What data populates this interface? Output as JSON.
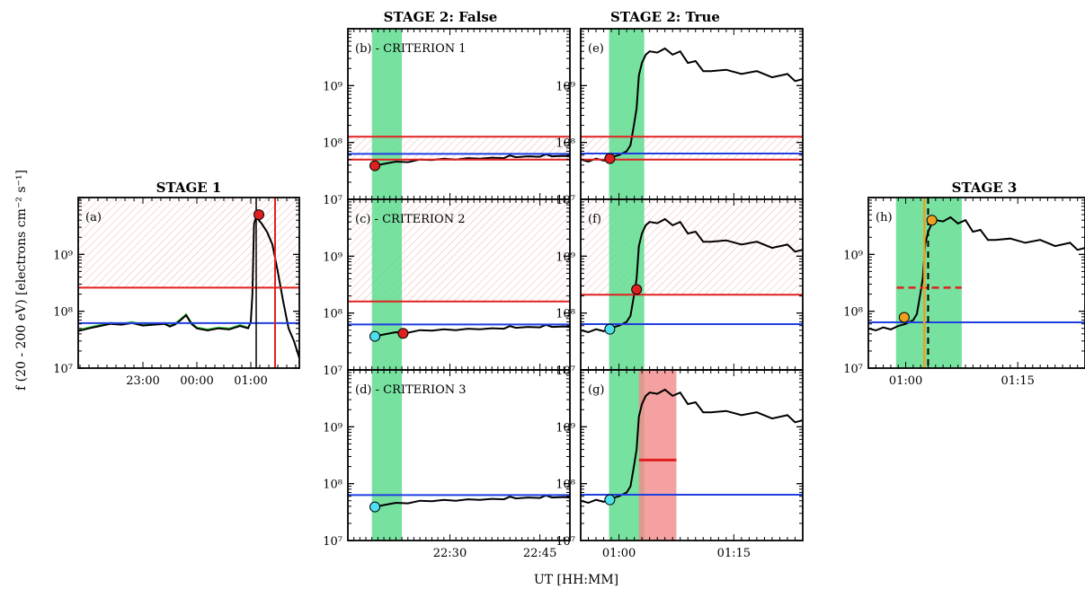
{
  "figure": {
    "ylabel": "f (20 - 200 eV) [electrons cm⁻² s⁻¹]",
    "xlabel": "UT [HH:MM]",
    "colors": {
      "flux": "#000000",
      "smoothed": "#3cc83c",
      "baseline": "#1f3fe0",
      "threshold": "#e02020",
      "window": "#5fdc8f",
      "onset_window": "#f28a8a",
      "onset_line": "#f0a020",
      "cyan_marker": "#4fe0f0"
    }
  },
  "titles": {
    "stage1": "STAGE 1",
    "stage2_false": "STAGE 2:  False",
    "stage2_true": "STAGE 2:  True",
    "stage3": "STAGE 3"
  },
  "ytick_labels": [
    "10⁷",
    "10⁸",
    "10⁹"
  ],
  "chart_data": [
    {
      "panel": "a",
      "label": "(a)",
      "type": "line",
      "xticks": [
        "23:00",
        "00:00",
        "01:00"
      ],
      "x_range_hours": [
        -2.2,
        1.9
      ],
      "ylim": [
        10000000.0,
        10000000000.0
      ],
      "yscale": "log",
      "baseline": 62000000.0,
      "threshold": 260000000.0,
      "onset_time": 1.1,
      "end_time": 1.45,
      "peak": {
        "x": 1.15,
        "y": 5000000000.0
      },
      "flux": [
        [
          -2.2,
          45000000.0
        ],
        [
          -2.0,
          50000000.0
        ],
        [
          -1.8,
          55000000.0
        ],
        [
          -1.6,
          60000000.0
        ],
        [
          -1.4,
          58000000.0
        ],
        [
          -1.2,
          62000000.0
        ],
        [
          -1.0,
          56000000.0
        ],
        [
          -0.8,
          58000000.0
        ],
        [
          -0.6,
          60000000.0
        ],
        [
          -0.5,
          54000000.0
        ],
        [
          -0.4,
          59000000.0
        ],
        [
          -0.3,
          70000000.0
        ],
        [
          -0.2,
          85000000.0
        ],
        [
          -0.1,
          60000000.0
        ],
        [
          0.0,
          50000000.0
        ],
        [
          0.2,
          46000000.0
        ],
        [
          0.4,
          50000000.0
        ],
        [
          0.6,
          48000000.0
        ],
        [
          0.8,
          55000000.0
        ],
        [
          0.95,
          50000000.0
        ],
        [
          1.0,
          65000000.0
        ],
        [
          1.03,
          200000000.0
        ],
        [
          1.06,
          3500000000.0
        ],
        [
          1.1,
          4500000000.0
        ],
        [
          1.2,
          3500000000.0
        ],
        [
          1.3,
          2500000000.0
        ],
        [
          1.4,
          1500000000.0
        ],
        [
          1.5,
          500000000.0
        ],
        [
          1.6,
          150000000.0
        ],
        [
          1.7,
          50000000.0
        ],
        [
          1.8,
          30000000.0
        ],
        [
          1.9,
          15000000.0
        ]
      ]
    },
    {
      "panel": "b",
      "label": "(b) - CRITERION 1",
      "type": "line",
      "xticks": [
        "22:30",
        "22:45"
      ],
      "x_range_min": [
        0,
        37
      ],
      "ylim": [
        10000000.0,
        10000000000.0
      ],
      "yscale": "log",
      "baseline": 63000000.0,
      "band": [
        50000000.0,
        126000000.0
      ],
      "window": [
        4,
        9
      ],
      "markers": [
        {
          "x": 4.5,
          "y": 39000000.0,
          "color": "red"
        }
      ],
      "flux": [
        [
          4.5,
          39000000.0
        ],
        [
          6,
          42000000.0
        ],
        [
          8,
          46000000.0
        ],
        [
          10,
          45000000.0
        ],
        [
          12,
          50000000.0
        ],
        [
          14,
          49000000.0
        ],
        [
          16,
          52000000.0
        ],
        [
          18,
          50000000.0
        ],
        [
          20,
          53000000.0
        ],
        [
          22,
          52000000.0
        ],
        [
          24,
          54000000.0
        ],
        [
          26,
          53000000.0
        ],
        [
          27,
          59000000.0
        ],
        [
          28,
          55000000.0
        ],
        [
          30,
          57000000.0
        ],
        [
          32,
          56000000.0
        ],
        [
          33,
          62000000.0
        ],
        [
          34,
          57000000.0
        ],
        [
          36,
          58000000.0
        ],
        [
          37,
          57000000.0
        ]
      ]
    },
    {
      "panel": "c",
      "label": "(c) - CRITERION 2",
      "type": "line",
      "xticks": [
        "22:30",
        "22:45"
      ],
      "x_range_min": [
        0,
        37
      ],
      "ylim": [
        10000000.0,
        10000000000.0
      ],
      "yscale": "log",
      "baseline": 63000000.0,
      "threshold": 160000000.0,
      "window": [
        4,
        9
      ],
      "markers": [
        {
          "x": 4.5,
          "y": 39000000.0,
          "color": "cyan"
        },
        {
          "x": 9.2,
          "y": 44000000.0,
          "color": "red"
        }
      ],
      "flux": [
        [
          4.5,
          39000000.0
        ],
        [
          6,
          42000000.0
        ],
        [
          8,
          46000000.0
        ],
        [
          10,
          45000000.0
        ],
        [
          12,
          50000000.0
        ],
        [
          14,
          49000000.0
        ],
        [
          16,
          52000000.0
        ],
        [
          18,
          50000000.0
        ],
        [
          20,
          53000000.0
        ],
        [
          22,
          52000000.0
        ],
        [
          24,
          54000000.0
        ],
        [
          26,
          53000000.0
        ],
        [
          27,
          59000000.0
        ],
        [
          28,
          55000000.0
        ],
        [
          30,
          57000000.0
        ],
        [
          32,
          56000000.0
        ],
        [
          33,
          62000000.0
        ],
        [
          34,
          57000000.0
        ],
        [
          36,
          58000000.0
        ],
        [
          37,
          57000000.0
        ]
      ]
    },
    {
      "panel": "d",
      "label": "(d) - CRITERION 3",
      "type": "line",
      "xticks": [
        "22:30",
        "22:45"
      ],
      "x_range_min": [
        0,
        37
      ],
      "ylim": [
        10000000.0,
        10000000000.0
      ],
      "yscale": "log",
      "baseline": 63000000.0,
      "window": [
        4,
        9
      ],
      "markers": [
        {
          "x": 4.5,
          "y": 39000000.0,
          "color": "cyan"
        }
      ],
      "flux": [
        [
          4.5,
          39000000.0
        ],
        [
          6,
          42000000.0
        ],
        [
          8,
          46000000.0
        ],
        [
          10,
          45000000.0
        ],
        [
          12,
          50000000.0
        ],
        [
          14,
          49000000.0
        ],
        [
          16,
          52000000.0
        ],
        [
          18,
          50000000.0
        ],
        [
          20,
          53000000.0
        ],
        [
          22,
          52000000.0
        ],
        [
          24,
          54000000.0
        ],
        [
          26,
          53000000.0
        ],
        [
          27,
          59000000.0
        ],
        [
          28,
          55000000.0
        ],
        [
          30,
          57000000.0
        ],
        [
          32,
          56000000.0
        ],
        [
          33,
          62000000.0
        ],
        [
          34,
          57000000.0
        ],
        [
          36,
          58000000.0
        ],
        [
          37,
          57000000.0
        ]
      ]
    },
    {
      "panel": "e",
      "label": "(e)",
      "type": "line",
      "xticks": [
        "01:00",
        "01:15"
      ],
      "x_range_min": [
        -5,
        24
      ],
      "ylim": [
        10000000.0,
        10000000000.0
      ],
      "yscale": "log",
      "baseline": 64000000.0,
      "band": [
        50000000.0,
        126000000.0
      ],
      "window": [
        -1.3,
        3.3
      ],
      "markers": [
        {
          "x": -1.2,
          "y": 52000000.0,
          "color": "red"
        }
      ],
      "flux": [
        [
          -5,
          50000000.0
        ],
        [
          -4,
          46000000.0
        ],
        [
          -3,
          52000000.0
        ],
        [
          -2,
          48000000.0
        ],
        [
          -1,
          55000000.0
        ],
        [
          0,
          60000000.0
        ],
        [
          1,
          70000000.0
        ],
        [
          1.5,
          90000000.0
        ],
        [
          2.0,
          220000000.0
        ],
        [
          2.3,
          400000000.0
        ],
        [
          2.6,
          1500000000.0
        ],
        [
          3.0,
          2500000000.0
        ],
        [
          3.5,
          3500000000.0
        ],
        [
          4,
          4000000000.0
        ],
        [
          5,
          3800000000.0
        ],
        [
          6,
          4500000000.0
        ],
        [
          7,
          3500000000.0
        ],
        [
          8,
          4000000000.0
        ],
        [
          9,
          2500000000.0
        ],
        [
          10,
          2700000000.0
        ],
        [
          11,
          1800000000.0
        ],
        [
          12,
          1800000000.0
        ],
        [
          14,
          1900000000.0
        ],
        [
          16,
          1600000000.0
        ],
        [
          18,
          1800000000.0
        ],
        [
          20,
          1400000000.0
        ],
        [
          22,
          1600000000.0
        ],
        [
          23,
          1200000000.0
        ],
        [
          24,
          1300000000.0
        ]
      ]
    },
    {
      "panel": "f",
      "label": "(f)",
      "type": "line",
      "xticks": [
        "01:00",
        "01:15"
      ],
      "x_range_min": [
        -5,
        24
      ],
      "ylim": [
        10000000.0,
        10000000000.0
      ],
      "yscale": "log",
      "baseline": 64000000.0,
      "threshold": 210000000.0,
      "window": [
        -1.3,
        3.3
      ],
      "markers": [
        {
          "x": -1.2,
          "y": 52000000.0,
          "color": "cyan"
        },
        {
          "x": 2.3,
          "y": 260000000.0,
          "color": "red"
        }
      ],
      "flux": [
        [
          -5,
          50000000.0
        ],
        [
          -4,
          46000000.0
        ],
        [
          -3,
          52000000.0
        ],
        [
          -2,
          48000000.0
        ],
        [
          -1,
          55000000.0
        ],
        [
          0,
          60000000.0
        ],
        [
          1,
          70000000.0
        ],
        [
          1.5,
          90000000.0
        ],
        [
          2.0,
          220000000.0
        ],
        [
          2.3,
          400000000.0
        ],
        [
          2.6,
          1500000000.0
        ],
        [
          3.0,
          2500000000.0
        ],
        [
          3.5,
          3500000000.0
        ],
        [
          4,
          4000000000.0
        ],
        [
          5,
          3800000000.0
        ],
        [
          6,
          4500000000.0
        ],
        [
          7,
          3500000000.0
        ],
        [
          8,
          4000000000.0
        ],
        [
          9,
          2500000000.0
        ],
        [
          10,
          2700000000.0
        ],
        [
          11,
          1800000000.0
        ],
        [
          12,
          1800000000.0
        ],
        [
          14,
          1900000000.0
        ],
        [
          16,
          1600000000.0
        ],
        [
          18,
          1800000000.0
        ],
        [
          20,
          1400000000.0
        ],
        [
          22,
          1600000000.0
        ],
        [
          23,
          1200000000.0
        ],
        [
          24,
          1300000000.0
        ]
      ]
    },
    {
      "panel": "g",
      "label": "(g)",
      "type": "line",
      "xticks": [
        "01:00",
        "01:15"
      ],
      "x_range_min": [
        -5,
        24
      ],
      "ylim": [
        10000000.0,
        10000000000.0
      ],
      "yscale": "log",
      "baseline": 64000000.0,
      "segment": {
        "x": [
          2.6,
          7.5
        ],
        "y": 260000000.0
      },
      "window": [
        -1.3,
        3.3
      ],
      "onset_window": [
        2.6,
        7.5
      ],
      "markers": [
        {
          "x": -1.2,
          "y": 52000000.0,
          "color": "cyan"
        }
      ],
      "flux": [
        [
          -5,
          50000000.0
        ],
        [
          -4,
          46000000.0
        ],
        [
          -3,
          52000000.0
        ],
        [
          -2,
          48000000.0
        ],
        [
          -1,
          55000000.0
        ],
        [
          0,
          60000000.0
        ],
        [
          1,
          70000000.0
        ],
        [
          1.5,
          90000000.0
        ],
        [
          2.0,
          220000000.0
        ],
        [
          2.3,
          400000000.0
        ],
        [
          2.6,
          1500000000.0
        ],
        [
          3.0,
          2500000000.0
        ],
        [
          3.5,
          3500000000.0
        ],
        [
          4,
          4000000000.0
        ],
        [
          5,
          3800000000.0
        ],
        [
          6,
          4500000000.0
        ],
        [
          7,
          3500000000.0
        ],
        [
          8,
          4000000000.0
        ],
        [
          9,
          2500000000.0
        ],
        [
          10,
          2700000000.0
        ],
        [
          11,
          1800000000.0
        ],
        [
          12,
          1800000000.0
        ],
        [
          14,
          1900000000.0
        ],
        [
          16,
          1600000000.0
        ],
        [
          18,
          1800000000.0
        ],
        [
          20,
          1400000000.0
        ],
        [
          22,
          1600000000.0
        ],
        [
          23,
          1200000000.0
        ],
        [
          24,
          1300000000.0
        ]
      ]
    },
    {
      "panel": "h",
      "label": "(h)",
      "type": "line",
      "xticks": [
        "01:00",
        "01:15"
      ],
      "x_range_min": [
        -5,
        24
      ],
      "ylim": [
        10000000.0,
        10000000000.0
      ],
      "yscale": "log",
      "baseline": 64000000.0,
      "dashed_threshold": {
        "x": [
          -1.2,
          7.5
        ],
        "y": 260000000.0
      },
      "window": [
        -1.3,
        7.5
      ],
      "onset_line": 2.5,
      "dashed_vertical": 3.0,
      "markers": [
        {
          "x": -0.2,
          "y": 78000000.0,
          "color": "orange"
        },
        {
          "x": 3.5,
          "y": 4000000000.0,
          "color": "orange"
        }
      ],
      "flux": [
        [
          -5,
          50000000.0
        ],
        [
          -4,
          46000000.0
        ],
        [
          -3,
          52000000.0
        ],
        [
          -2,
          48000000.0
        ],
        [
          -1,
          55000000.0
        ],
        [
          0,
          60000000.0
        ],
        [
          1,
          70000000.0
        ],
        [
          1.5,
          90000000.0
        ],
        [
          2.0,
          220000000.0
        ],
        [
          2.3,
          400000000.0
        ],
        [
          2.6,
          1500000000.0
        ],
        [
          3.0,
          2500000000.0
        ],
        [
          3.5,
          3500000000.0
        ],
        [
          4,
          4000000000.0
        ],
        [
          5,
          3800000000.0
        ],
        [
          6,
          4500000000.0
        ],
        [
          7,
          3500000000.0
        ],
        [
          8,
          4000000000.0
        ],
        [
          9,
          2500000000.0
        ],
        [
          10,
          2700000000.0
        ],
        [
          11,
          1800000000.0
        ],
        [
          12,
          1800000000.0
        ],
        [
          14,
          1900000000.0
        ],
        [
          16,
          1600000000.0
        ],
        [
          18,
          1800000000.0
        ],
        [
          20,
          1400000000.0
        ],
        [
          22,
          1600000000.0
        ],
        [
          23,
          1200000000.0
        ],
        [
          24,
          1300000000.0
        ]
      ]
    }
  ]
}
